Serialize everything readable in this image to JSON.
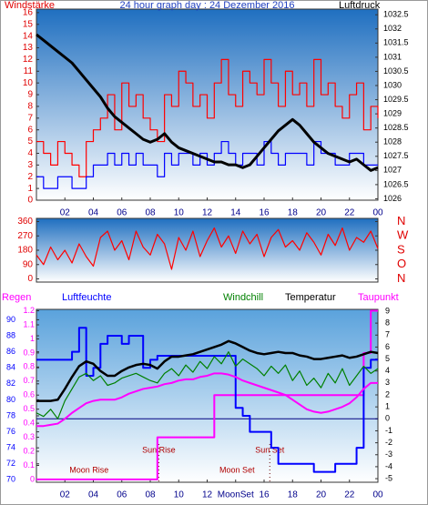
{
  "chart_data": [
    {
      "type": "line",
      "title": "24 hour graph day : 24 Dezember 2016",
      "title_color": "#1f3fbf",
      "y_label": "Windstärke",
      "y_color": "#e00000",
      "y2_label": "Luftdruck",
      "y2_color": "#000000",
      "x": [
        0,
        0.5,
        1,
        1.5,
        2,
        2.5,
        3,
        3.5,
        4,
        4.5,
        5,
        5.5,
        6,
        6.5,
        7,
        7.5,
        8,
        8.5,
        9,
        9.5,
        10,
        10.5,
        11,
        11.5,
        12,
        12.5,
        13,
        13.5,
        14,
        14.5,
        15,
        15.5,
        16,
        16.5,
        17,
        17.5,
        18,
        18.5,
        19,
        19.5,
        20,
        20.5,
        21,
        21.5,
        22,
        22.5,
        23,
        23.5,
        24
      ],
      "xlim": [
        0,
        24
      ],
      "xticks": [
        {
          "value": 2,
          "label": "02"
        },
        {
          "value": 4,
          "label": "04"
        },
        {
          "value": 6,
          "label": "06"
        },
        {
          "value": 8,
          "label": "08"
        },
        10,
        12,
        14,
        16,
        18,
        20,
        22,
        {
          "value": 24,
          "label": "00"
        }
      ],
      "ylim": [
        0,
        16.3
      ],
      "yticks": [
        0,
        1,
        2,
        3,
        4,
        5,
        6,
        7,
        8,
        9,
        10,
        11,
        12,
        13,
        14,
        15,
        16
      ],
      "y2lim": [
        1025.95,
        1032.7
      ],
      "y2ticks": [
        1026,
        1026.5,
        1027,
        1027.5,
        1028,
        1028.5,
        1029,
        1029.5,
        1030,
        1030.5,
        1031,
        1031.5,
        1032,
        1032.5
      ],
      "series": [
        {
          "color": "#ff0000",
          "step": true,
          "values": [
            5,
            4,
            3,
            5,
            4,
            3,
            2,
            5,
            6,
            7,
            9,
            6,
            10,
            8,
            9,
            7,
            6,
            5,
            9,
            8,
            11,
            10,
            8,
            9,
            7,
            10,
            12,
            9,
            8,
            11,
            10,
            9,
            12,
            10,
            8,
            11,
            9,
            10,
            8,
            12,
            9,
            10,
            8,
            7,
            9,
            10,
            6,
            8,
            7
          ]
        },
        {
          "color": "#0000ff",
          "step": true,
          "values": [
            2,
            1,
            1,
            2,
            2,
            1,
            1,
            2,
            3,
            3,
            4,
            3,
            4,
            3,
            4,
            3,
            3,
            2,
            4,
            3,
            4,
            4,
            3,
            4,
            3,
            4,
            5,
            4,
            3,
            4,
            4,
            3,
            5,
            4,
            3,
            4,
            4,
            4,
            3,
            5,
            4,
            4,
            3,
            3,
            4,
            4,
            3,
            3,
            3
          ]
        },
        {
          "color": "#000000",
          "axis": "y2",
          "width": 3,
          "values": [
            1031.8,
            1031.6,
            1031.4,
            1031.2,
            1031.0,
            1030.8,
            1030.5,
            1030.2,
            1029.9,
            1029.6,
            1029.2,
            1028.9,
            1028.7,
            1028.5,
            1028.3,
            1028.1,
            1028.0,
            1028.1,
            1028.3,
            1028.0,
            1027.8,
            1027.7,
            1027.6,
            1027.5,
            1027.4,
            1027.3,
            1027.3,
            1027.2,
            1027.2,
            1027.1,
            1027.2,
            1027.5,
            1027.8,
            1028.1,
            1028.4,
            1028.6,
            1028.8,
            1028.6,
            1028.3,
            1028.0,
            1027.8,
            1027.6,
            1027.5,
            1027.4,
            1027.3,
            1027.4,
            1027.2,
            1027.0,
            1027.1
          ]
        }
      ]
    },
    {
      "type": "line",
      "y_color": "#e00000",
      "y2_color": "#e00000",
      "x": [
        0,
        0.5,
        1,
        1.5,
        2,
        2.5,
        3,
        3.5,
        4,
        4.5,
        5,
        5.5,
        6,
        6.5,
        7,
        7.5,
        8,
        8.5,
        9,
        9.5,
        10,
        10.5,
        11,
        11.5,
        12,
        12.5,
        13,
        13.5,
        14,
        14.5,
        15,
        15.5,
        16,
        16.5,
        17,
        17.5,
        18,
        18.5,
        19,
        19.5,
        20,
        20.5,
        21,
        21.5,
        22,
        22.5,
        23,
        23.5,
        24
      ],
      "xlim": [
        0,
        24
      ],
      "ylim": [
        -20,
        380
      ],
      "yticks": [
        0,
        90,
        180,
        270,
        360
      ],
      "y2lim": [
        -20,
        380
      ],
      "y2ticks": [
        {
          "value": 360,
          "label": "N"
        },
        {
          "value": 270,
          "label": "W"
        },
        {
          "value": 180,
          "label": "S"
        },
        {
          "value": 90,
          "label": "O"
        },
        {
          "value": 0,
          "label": "N"
        }
      ],
      "series": [
        {
          "color": "#ff0000",
          "values": [
            150,
            90,
            200,
            120,
            180,
            100,
            220,
            140,
            80,
            260,
            300,
            180,
            240,
            120,
            300,
            200,
            150,
            280,
            220,
            60,
            260,
            180,
            300,
            140,
            240,
            320,
            200,
            270,
            160,
            300,
            220,
            280,
            140,
            260,
            310,
            200,
            240,
            180,
            290,
            230,
            150,
            280,
            210,
            320,
            180,
            260,
            230,
            300,
            190
          ]
        }
      ]
    },
    {
      "type": "line",
      "y_color": "#0000ff",
      "y2_color": "#000000",
      "y3_color": "#ff00ff",
      "zero_line": true,
      "x": [
        0,
        0.5,
        1,
        1.5,
        2,
        2.5,
        3,
        3.5,
        4,
        4.5,
        5,
        5.5,
        6,
        6.5,
        7,
        7.5,
        8,
        8.5,
        9,
        9.5,
        10,
        10.5,
        11,
        11.5,
        12,
        12.5,
        13,
        13.5,
        14,
        14.5,
        15,
        15.5,
        16,
        16.5,
        17,
        17.5,
        18,
        18.5,
        19,
        19.5,
        20,
        20.5,
        21,
        21.5,
        22,
        22.5,
        23,
        23.5,
        24
      ],
      "xlim": [
        0,
        24
      ],
      "xticks": [
        {
          "value": 2,
          "label": "02"
        },
        {
          "value": 4,
          "label": "04"
        },
        {
          "value": 6,
          "label": "06"
        },
        {
          "value": 8,
          "label": "08"
        },
        10,
        12,
        {
          "value": 14,
          "label": "MoonSet"
        },
        16,
        18,
        20,
        22,
        {
          "value": 24,
          "label": "00"
        }
      ],
      "ylim": [
        69.7,
        91.3
      ],
      "yticks": [
        70,
        72,
        74,
        76,
        78,
        80,
        82,
        84,
        86,
        88,
        90
      ],
      "y2lim": [
        -5.3,
        9.15
      ],
      "y2ticks": [
        -5,
        -4,
        -3,
        -2,
        -1,
        0,
        1,
        2,
        3,
        4,
        5,
        6,
        7,
        8,
        9
      ],
      "y3lim": [
        -0.02,
        1.21
      ],
      "y3ticks": [
        0,
        0.1,
        0.2,
        0.3,
        0.4,
        0.5,
        0.6,
        0.7,
        0.8,
        0.9,
        1,
        1.1,
        1.2
      ],
      "series": [
        {
          "name": "Regen",
          "color": "#ff00ff",
          "axis": "y3",
          "step": true,
          "width": 2,
          "values": [
            0,
            0,
            0,
            0,
            0,
            0,
            0,
            0,
            0,
            0,
            0,
            0,
            0,
            0,
            0,
            0,
            0,
            0.3,
            0.3,
            0.3,
            0.3,
            0.3,
            0.3,
            0.3,
            0.3,
            0.6,
            0.6,
            0.6,
            0.6,
            0.6,
            0.6,
            0.6,
            0.6,
            0.6,
            0.6,
            0.6,
            0.6,
            0.6,
            0.6,
            0.6,
            0.6,
            0.6,
            0.6,
            0.6,
            0.6,
            0.6,
            0.9,
            1.2,
            1.2
          ]
        },
        {
          "name": "Luftfeuchte",
          "color": "#0000ff",
          "axis": "y",
          "step": true,
          "width": 2,
          "values": [
            85,
            85,
            85,
            85,
            85,
            86,
            89,
            83,
            84,
            87,
            88,
            88,
            87,
            88,
            88,
            84,
            85,
            85.5,
            85.5,
            85.5,
            85.5,
            85.5,
            85.5,
            85.5,
            85.5,
            85.5,
            85.5,
            85.5,
            79,
            78,
            76,
            76,
            76,
            74,
            72,
            72,
            72,
            72,
            72,
            71,
            71,
            71,
            72,
            72,
            72,
            74,
            84,
            85,
            85
          ]
        },
        {
          "name": "Windchill",
          "color": "#008000",
          "axis": "y2",
          "values": [
            0.5,
            0.2,
            0.8,
            0,
            1.5,
            2.5,
            3.5,
            3.8,
            3.2,
            3.6,
            2.8,
            3.0,
            3.4,
            3.6,
            3.8,
            3.5,
            3.2,
            3.0,
            3.8,
            4.2,
            3.6,
            4.5,
            3.9,
            4.8,
            4.2,
            5.2,
            4.6,
            5.6,
            4.4,
            5.0,
            4.6,
            4.2,
            3.6,
            4.4,
            3.8,
            4.5,
            3.2,
            4.0,
            2.8,
            3.4,
            2.6,
            3.8,
            3.0,
            4.2,
            2.8,
            3.6,
            4.4,
            3.8,
            4.2
          ]
        },
        {
          "name": "Temperatur",
          "color": "#000000",
          "axis": "y2",
          "width": 2.5,
          "values": [
            1.5,
            1.5,
            1.5,
            1.6,
            2.5,
            3.5,
            4.4,
            4.8,
            4.6,
            4.0,
            3.6,
            3.6,
            4.0,
            4.3,
            4.5,
            4.6,
            4.5,
            4.2,
            4.8,
            5.2,
            5.2,
            5.3,
            5.4,
            5.6,
            5.8,
            6.0,
            6.2,
            6.5,
            6.3,
            6.0,
            5.7,
            5.5,
            5.4,
            5.5,
            5.6,
            5.5,
            5.5,
            5.3,
            5.2,
            5.0,
            5.0,
            5.1,
            5.2,
            5.3,
            5.1,
            5.2,
            5.4,
            5.6,
            5.5
          ]
        },
        {
          "name": "Taupunkt",
          "color": "#ff00ff",
          "axis": "y2",
          "width": 2,
          "values": [
            -0.6,
            -0.6,
            -0.5,
            -0.4,
            0,
            0.5,
            0.9,
            1.3,
            1.5,
            1.6,
            1.6,
            1.6,
            1.8,
            2.1,
            2.3,
            2.5,
            2.6,
            2.7,
            2.9,
            3.0,
            3.2,
            3.3,
            3.3,
            3.5,
            3.6,
            3.8,
            3.8,
            3.7,
            3.5,
            3.2,
            3.0,
            2.8,
            2.6,
            2.4,
            2.2,
            2.0,
            1.6,
            1.2,
            0.8,
            0.6,
            0.5,
            0.6,
            0.8,
            1.0,
            1.3,
            1.8,
            2.5,
            3.0,
            3.0
          ]
        }
      ],
      "annotations": [
        {
          "text": "Moon Rise",
          "x": 3.7
        },
        {
          "text": "Sun Rise",
          "x": 8.6,
          "dotted": true
        },
        {
          "text": "Moon Set",
          "x": 14.1
        },
        {
          "text": "Sun Set",
          "x": 16.4,
          "dotted": true
        }
      ]
    }
  ]
}
